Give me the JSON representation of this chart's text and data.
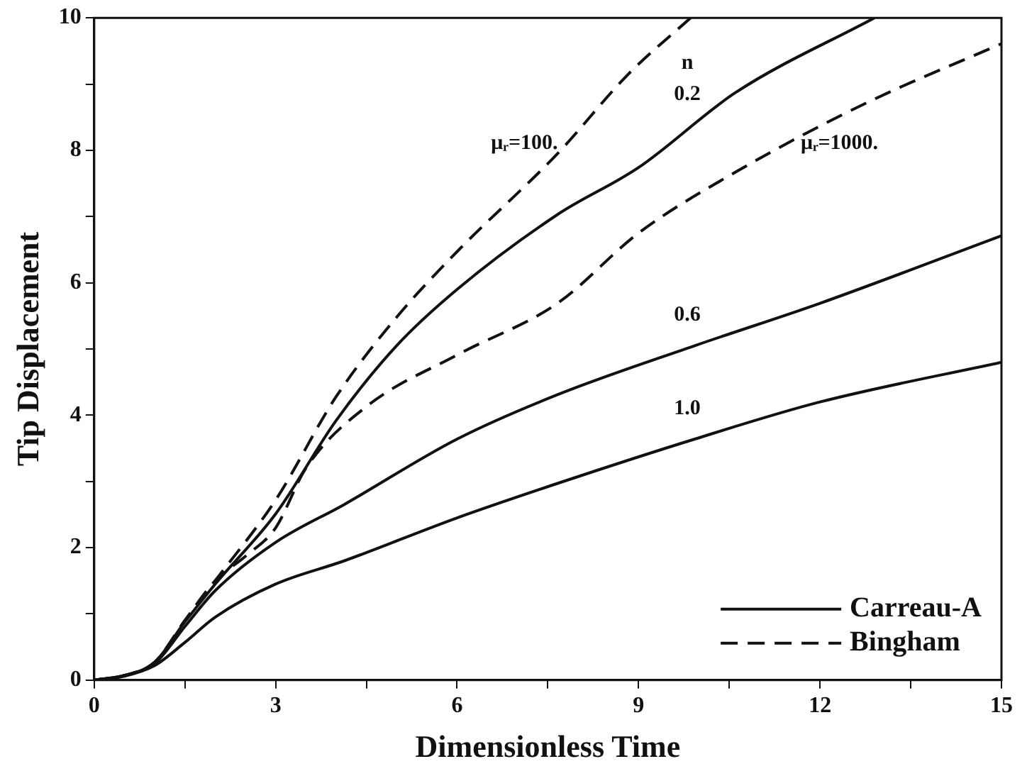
{
  "chart_data": {
    "type": "line",
    "xlabel": "Dimensionless Time",
    "ylabel": "Tip Displacement",
    "xlim": [
      0,
      15
    ],
    "ylim": [
      0,
      10
    ],
    "xticks": [
      0,
      {
        "value": 1.5,
        "label": null
      },
      3,
      {
        "value": 4.5,
        "label": null
      },
      6,
      {
        "value": 7.5,
        "label": null
      },
      9,
      {
        "value": 10.5,
        "label": null
      },
      12,
      {
        "value": 13.5,
        "label": null
      },
      15
    ],
    "yticks": [
      0,
      {
        "value": 1,
        "label": null
      },
      2,
      {
        "value": 3,
        "label": null
      },
      4,
      {
        "value": 5,
        "label": null
      },
      6,
      {
        "value": 7,
        "label": null
      },
      8,
      {
        "value": 9,
        "label": null
      },
      10
    ],
    "grid": false,
    "marker": "none",
    "series": [
      {
        "name": "0.2",
        "color": "#111111",
        "line_style": "solid",
        "x": [
          0,
          0.5,
          1,
          1.5,
          2,
          3,
          4,
          5,
          6,
          7.66,
          9,
          10.6,
          12.9
        ],
        "values": [
          0,
          0.07,
          0.27,
          0.88,
          1.45,
          2.51,
          3.92,
          5.05,
          5.9,
          7.03,
          7.74,
          8.87,
          10
        ]
      },
      {
        "name": "0.6",
        "color": "#111111",
        "line_style": "solid",
        "x": [
          0,
          0.5,
          1,
          1.5,
          2,
          3,
          4.13,
          6,
          7.66,
          9.93,
          12,
          15
        ],
        "values": [
          0,
          0.07,
          0.25,
          0.81,
          1.35,
          2.08,
          2.65,
          3.64,
          4.31,
          5.05,
          5.69,
          6.71
        ]
      },
      {
        "name": "1.0",
        "color": "#111111",
        "line_style": "solid",
        "x": [
          0,
          0.5,
          1,
          1.5,
          2,
          3,
          4.13,
          6,
          7.66,
          9.93,
          12,
          15
        ],
        "values": [
          0,
          0.06,
          0.22,
          0.57,
          0.95,
          1.45,
          1.8,
          2.45,
          2.97,
          3.64,
          4.2,
          4.8
        ]
      },
      {
        "name": "μᵣ=100.",
        "color": "#111111",
        "line_style": "dashed",
        "x": [
          0,
          0.5,
          1,
          1.5,
          2,
          3,
          4,
          5,
          6,
          7.66,
          8.83,
          9.86
        ],
        "values": [
          0,
          0.07,
          0.27,
          0.9,
          1.5,
          2.72,
          4.28,
          5.48,
          6.47,
          7.95,
          9.15,
          10
        ]
      },
      {
        "name": "μᵣ=1000.",
        "color": "#111111",
        "line_style": "dashed",
        "x": [
          0,
          0.5,
          1,
          1.5,
          2,
          2.5,
          3,
          3.5,
          4.5,
          6,
          7.66,
          9,
          10.6,
          12.8,
          15
        ],
        "values": [
          0,
          0.07,
          0.27,
          0.9,
          1.5,
          1.87,
          2.3,
          3.2,
          4.13,
          4.91,
          5.69,
          6.75,
          7.67,
          8.73,
          9.61
        ]
      }
    ],
    "annotations": [
      "n",
      "Carreau-A",
      "Bingham"
    ]
  }
}
